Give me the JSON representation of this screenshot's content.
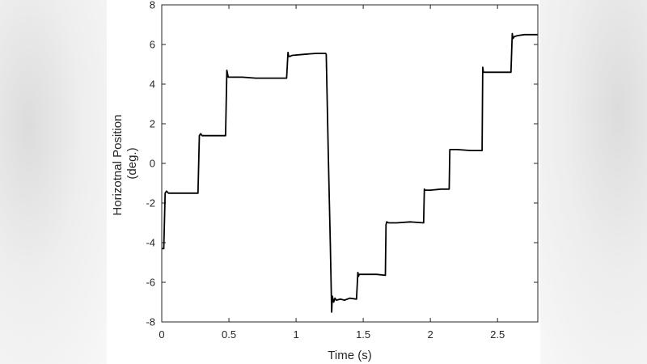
{
  "chart_data": {
    "type": "line",
    "title": "",
    "xlabel": "Time (s)",
    "ylabel": [
      "Horizotnal Position",
      "(deg.)"
    ],
    "xlim": [
      0,
      2.8
    ],
    "ylim": [
      -8,
      8
    ],
    "xticks": [
      0,
      0.5,
      1,
      1.5,
      2,
      2.5
    ],
    "xtick_labels": [
      "0",
      "0.5",
      "1",
      "1.5",
      "2",
      "2.5"
    ],
    "yticks": [
      -8,
      -6,
      -4,
      -2,
      0,
      2,
      4,
      6,
      8
    ],
    "ytick_labels": [
      "-8",
      "-6",
      "-4",
      "-2",
      "0",
      "2",
      "4",
      "6",
      "8"
    ],
    "grid": false,
    "line_color": "#000000",
    "series": [
      {
        "x": [
          0.0,
          0.015,
          0.025,
          0.035,
          0.05,
          0.1,
          0.2,
          0.27,
          0.28,
          0.29,
          0.3,
          0.35,
          0.45,
          0.475,
          0.485,
          0.495,
          0.51,
          0.6,
          0.7,
          0.8,
          0.93,
          0.94,
          0.945,
          0.955,
          0.97,
          1.05,
          1.15,
          1.22,
          1.225,
          1.24,
          1.255,
          1.265,
          1.27,
          1.28,
          1.29,
          1.3,
          1.33,
          1.36,
          1.4,
          1.45,
          1.46,
          1.465,
          1.47,
          1.48,
          1.52,
          1.6,
          1.665,
          1.67,
          1.675,
          1.69,
          1.75,
          1.85,
          1.95,
          1.955,
          1.96,
          1.97,
          2.0,
          2.08,
          2.14,
          2.145,
          2.15,
          2.16,
          2.2,
          2.3,
          2.385,
          2.39,
          2.395,
          2.4,
          2.41,
          2.45,
          2.5,
          2.6,
          2.61,
          2.615,
          2.625,
          2.65,
          2.7,
          2.8
        ],
        "y": [
          -4.3,
          -4.3,
          -1.5,
          -1.4,
          -1.5,
          -1.5,
          -1.5,
          -1.5,
          1.4,
          1.5,
          1.4,
          1.4,
          1.4,
          1.4,
          4.7,
          4.35,
          4.35,
          4.35,
          4.3,
          4.3,
          4.3,
          5.6,
          5.4,
          5.4,
          5.45,
          5.5,
          5.55,
          5.55,
          5.5,
          0.5,
          -4.0,
          -7.5,
          -6.7,
          -7.0,
          -6.8,
          -6.9,
          -6.85,
          -6.9,
          -6.8,
          -6.85,
          -5.5,
          -5.7,
          -5.6,
          -5.6,
          -5.6,
          -5.6,
          -5.65,
          -3.1,
          -2.95,
          -3.0,
          -3.0,
          -2.95,
          -3.0,
          -1.3,
          -1.35,
          -1.35,
          -1.35,
          -1.3,
          -1.3,
          0.7,
          0.7,
          0.7,
          0.7,
          0.65,
          0.65,
          4.85,
          4.6,
          4.6,
          4.6,
          4.6,
          4.6,
          4.6,
          6.55,
          6.3,
          6.4,
          6.45,
          6.5,
          6.5
        ]
      }
    ]
  }
}
